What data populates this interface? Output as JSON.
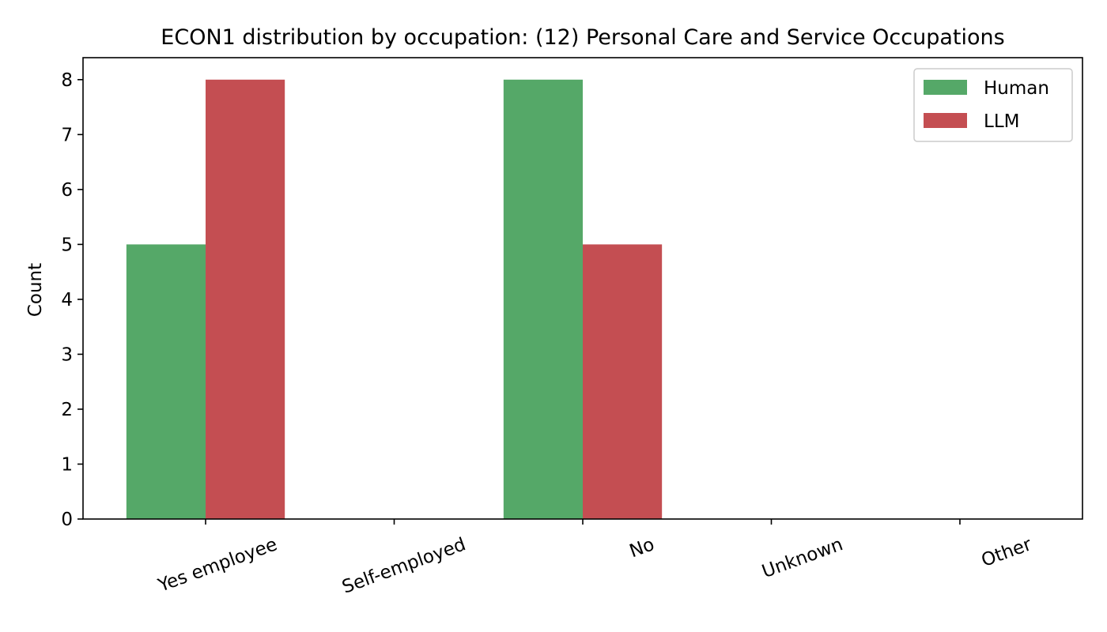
{
  "chart_data": {
    "type": "bar",
    "title": "ECON1 distribution by occupation: (12) Personal Care and Service Occupations",
    "xlabel": "",
    "ylabel": "Count",
    "categories": [
      "Yes employee",
      "Self-employed",
      "No",
      "Unknown",
      "Other"
    ],
    "series": [
      {
        "name": "Human",
        "values": [
          5,
          0,
          8,
          0,
          0
        ],
        "color": "#55a868"
      },
      {
        "name": "LLM",
        "values": [
          8,
          0,
          5,
          0,
          0
        ],
        "color": "#c44e52"
      }
    ],
    "ylim": [
      0,
      8.4
    ],
    "yticks": [
      0,
      1,
      2,
      3,
      4,
      5,
      6,
      7,
      8
    ],
    "grid": false,
    "legend_position": "top-right"
  }
}
